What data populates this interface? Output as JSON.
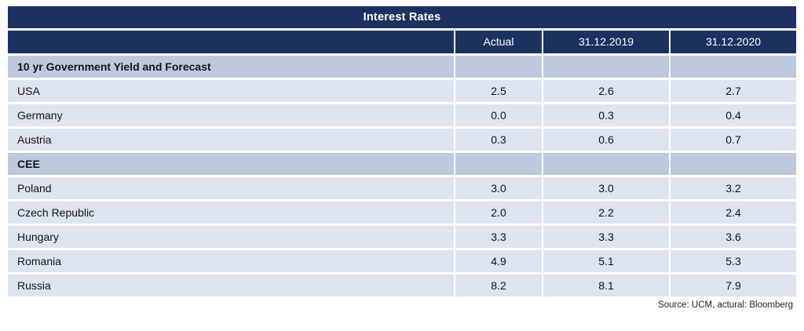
{
  "colors": {
    "header_navy": "#1d3160",
    "section_row_bg": "#bdcade",
    "data_row_bg": "#dde4ef",
    "header_text": "#ffffff",
    "body_text": "#111418"
  },
  "table": {
    "title": "Interest Rates",
    "columns": [
      "",
      "Actual",
      "31.12.2019",
      "31.12.2020"
    ],
    "rows": [
      {
        "type": "section",
        "label": "10 yr Government Yield and Forecast",
        "values": [
          "",
          "",
          ""
        ]
      },
      {
        "type": "data",
        "label": "USA",
        "values": [
          "2.5",
          "2.6",
          "2.7"
        ]
      },
      {
        "type": "data",
        "label": "Germany",
        "values": [
          "0.0",
          "0.3",
          "0.4"
        ]
      },
      {
        "type": "data",
        "label": "Austria",
        "values": [
          "0.3",
          "0.6",
          "0.7"
        ]
      },
      {
        "type": "section",
        "label": "CEE",
        "values": [
          "",
          "",
          ""
        ]
      },
      {
        "type": "data",
        "label": "Poland",
        "values": [
          "3.0",
          "3.0",
          "3.2"
        ]
      },
      {
        "type": "data",
        "label": "Czech Republic",
        "values": [
          "2.0",
          "2.2",
          "2.4"
        ]
      },
      {
        "type": "data",
        "label": "Hungary",
        "values": [
          "3.3",
          "3.3",
          "3.6"
        ]
      },
      {
        "type": "data",
        "label": "Romania",
        "values": [
          "4.9",
          "5.1",
          "5.3"
        ]
      },
      {
        "type": "data",
        "label": "Russia",
        "values": [
          "8.2",
          "8.1",
          "7.9"
        ]
      }
    ]
  },
  "source_note": "Source: UCM, actural: Bloomberg",
  "chart_data": {
    "type": "table",
    "title": "Interest Rates",
    "columns": [
      "",
      "Actual",
      "31.12.2019",
      "31.12.2020"
    ],
    "sections": [
      {
        "name": "10 yr Government Yield and Forecast",
        "rows": [
          {
            "label": "USA",
            "actual": 2.5,
            "y2019": 2.6,
            "y2020": 2.7
          },
          {
            "label": "Germany",
            "actual": 0.0,
            "y2019": 0.3,
            "y2020": 0.4
          },
          {
            "label": "Austria",
            "actual": 0.3,
            "y2019": 0.6,
            "y2020": 0.7
          }
        ]
      },
      {
        "name": "CEE",
        "rows": [
          {
            "label": "Poland",
            "actual": 3.0,
            "y2019": 3.0,
            "y2020": 3.2
          },
          {
            "label": "Czech Republic",
            "actual": 2.0,
            "y2019": 2.2,
            "y2020": 2.4
          },
          {
            "label": "Hungary",
            "actual": 3.3,
            "y2019": 3.3,
            "y2020": 3.6
          },
          {
            "label": "Romania",
            "actual": 4.9,
            "y2019": 5.1,
            "y2020": 5.3
          },
          {
            "label": "Russia",
            "actual": 8.2,
            "y2019": 8.1,
            "y2020": 7.9
          }
        ]
      }
    ],
    "source": "Source: UCM, actural: Bloomberg"
  }
}
